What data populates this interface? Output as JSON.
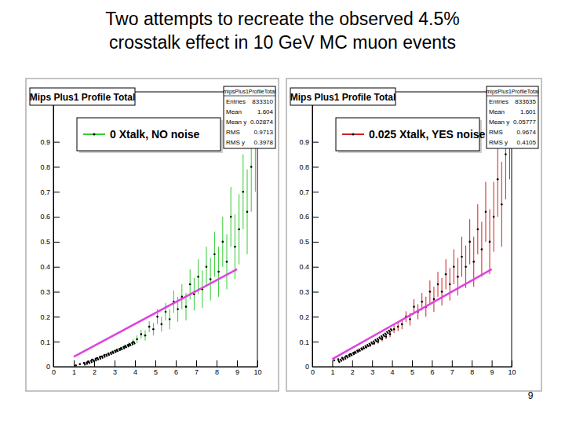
{
  "title": [
    "Two attempts to recreate the observed 4.5%",
    "crosstalk effect in 10 GeV MC muon events"
  ],
  "page_number": 9,
  "chart_data": [
    {
      "type": "scatter",
      "title": "Mips Plus1 Profile Total",
      "stats": {
        "title": "mipsPlus1ProfileTotal",
        "rows": [
          {
            "label": "Entries",
            "value": 833310
          },
          {
            "label": "Mean",
            "value": 1.604
          },
          {
            "label": "Mean y",
            "value": 0.02874
          },
          {
            "label": "RMS",
            "value": 0.9713
          },
          {
            "label": "RMS y",
            "value": 0.3978
          }
        ]
      },
      "xlim": [
        0,
        10
      ],
      "xticks": [
        0,
        1,
        2,
        3,
        4,
        5,
        6,
        7,
        8,
        9,
        10
      ],
      "ylim": [
        0,
        1.1
      ],
      "yticks": [
        0,
        0.1,
        0.2,
        0.3,
        0.4,
        0.5,
        0.6,
        0.7,
        0.8,
        0.9
      ],
      "legend": "top",
      "series": [
        {
          "name": "0 Xtalk, NO noise",
          "color": "#33cc33",
          "marker": "dot",
          "x": [
            1.1,
            1.3,
            1.5,
            1.7,
            1.9,
            2.1,
            2.3,
            2.5,
            2.7,
            2.9,
            3.1,
            3.3,
            3.5,
            3.7,
            3.9,
            4.1,
            4.3,
            4.5,
            4.7,
            4.9,
            5.1,
            5.3,
            5.5,
            5.7,
            5.9,
            6.1,
            6.3,
            6.5,
            6.7,
            6.9,
            7.1,
            7.3,
            7.5,
            7.7,
            7.9,
            8.1,
            8.3,
            8.5,
            8.7,
            8.9,
            9.1,
            9.3,
            9.5,
            9.7,
            9.9
          ],
          "values": [
            0.005,
            0.01,
            0.015,
            0.02,
            0.028,
            0.033,
            0.04,
            0.046,
            0.052,
            0.058,
            0.065,
            0.072,
            0.08,
            0.088,
            0.098,
            0.11,
            0.13,
            0.125,
            0.16,
            0.15,
            0.2,
            0.17,
            0.22,
            0.19,
            0.26,
            0.23,
            0.28,
            0.24,
            0.33,
            0.29,
            0.36,
            0.31,
            0.4,
            0.35,
            0.45,
            0.38,
            0.5,
            0.42,
            0.6,
            0.48,
            0.55,
            0.7,
            0.62,
            0.8,
            0.9
          ],
          "errors": [
            0.002,
            0.002,
            0.003,
            0.003,
            0.003,
            0.004,
            0.004,
            0.005,
            0.005,
            0.006,
            0.007,
            0.008,
            0.009,
            0.01,
            0.012,
            0.015,
            0.018,
            0.02,
            0.022,
            0.025,
            0.03,
            0.03,
            0.035,
            0.04,
            0.045,
            0.05,
            0.05,
            0.055,
            0.06,
            0.065,
            0.07,
            0.075,
            0.08,
            0.085,
            0.09,
            0.1,
            0.1,
            0.11,
            0.12,
            0.13,
            0.14,
            0.15,
            0.17,
            0.18,
            0.2
          ]
        },
        {
          "type": "line",
          "color": "#dd44dd",
          "line_style": "solid",
          "x": [
            1,
            9
          ],
          "values": [
            0.04,
            0.39
          ]
        },
        {
          "type": "line",
          "color": "#000000",
          "line_style": "dotted",
          "x": [
            1.5,
            2,
            2.5,
            3,
            3.5,
            4
          ],
          "values": [
            0.01,
            0.025,
            0.042,
            0.06,
            0.078,
            0.097
          ]
        }
      ]
    },
    {
      "type": "scatter",
      "title": "Mips Plus1 Profile Total",
      "stats": {
        "title": "mipsPlus1ProfileTotal",
        "rows": [
          {
            "label": "Entries",
            "value": 833635
          },
          {
            "label": "Mean",
            "value": 1.601
          },
          {
            "label": "Mean y",
            "value": 0.05777
          },
          {
            "label": "RMS",
            "value": 0.9674
          },
          {
            "label": "RMS y",
            "value": 0.4105
          }
        ]
      },
      "xlim": [
        0,
        10
      ],
      "xticks": [
        0,
        1,
        2,
        3,
        4,
        5,
        6,
        7,
        8,
        9,
        10
      ],
      "ylim": [
        0,
        1.1
      ],
      "yticks": [
        0,
        0.1,
        0.2,
        0.3,
        0.4,
        0.5,
        0.6,
        0.7,
        0.8,
        0.9
      ],
      "legend": "top",
      "series": [
        {
          "name": "0.025 Xtalk, YES noise",
          "color": "#cc2222",
          "marker": "dot",
          "x": [
            1.1,
            1.3,
            1.5,
            1.7,
            1.9,
            2.1,
            2.3,
            2.5,
            2.7,
            2.9,
            3.1,
            3.3,
            3.5,
            3.7,
            3.9,
            4.1,
            4.3,
            4.5,
            4.7,
            4.9,
            5.1,
            5.3,
            5.5,
            5.7,
            5.9,
            6.1,
            6.3,
            6.5,
            6.7,
            6.9,
            7.1,
            7.3,
            7.5,
            7.7,
            7.9,
            8.1,
            8.3,
            8.5,
            8.7,
            8.9,
            9.1,
            9.3,
            9.5,
            9.7,
            9.9
          ],
          "values": [
            0.025,
            0.03,
            0.035,
            0.042,
            0.05,
            0.056,
            0.063,
            0.07,
            0.078,
            0.085,
            0.093,
            0.1,
            0.11,
            0.12,
            0.13,
            0.15,
            0.16,
            0.17,
            0.2,
            0.19,
            0.24,
            0.22,
            0.26,
            0.24,
            0.3,
            0.27,
            0.33,
            0.3,
            0.37,
            0.33,
            0.4,
            0.36,
            0.44,
            0.4,
            0.5,
            0.42,
            0.55,
            0.47,
            0.62,
            0.5,
            0.6,
            0.75,
            0.65,
            0.85,
            0.95
          ],
          "errors": [
            0.002,
            0.002,
            0.003,
            0.003,
            0.003,
            0.004,
            0.004,
            0.005,
            0.005,
            0.006,
            0.007,
            0.008,
            0.009,
            0.01,
            0.012,
            0.015,
            0.018,
            0.02,
            0.022,
            0.025,
            0.03,
            0.03,
            0.035,
            0.04,
            0.045,
            0.05,
            0.05,
            0.055,
            0.06,
            0.065,
            0.07,
            0.075,
            0.08,
            0.085,
            0.09,
            0.1,
            0.1,
            0.11,
            0.12,
            0.13,
            0.14,
            0.15,
            0.17,
            0.18,
            0.2
          ]
        },
        {
          "type": "line",
          "color": "#dd44dd",
          "line_style": "solid",
          "x": [
            1,
            9
          ],
          "values": [
            0.03,
            0.39
          ]
        },
        {
          "type": "line",
          "color": "#000000",
          "line_style": "dotted",
          "x": [
            1.3,
            2,
            2.5,
            3,
            3.5,
            4
          ],
          "values": [
            0.02,
            0.05,
            0.072,
            0.095,
            0.12,
            0.15
          ]
        }
      ]
    }
  ]
}
